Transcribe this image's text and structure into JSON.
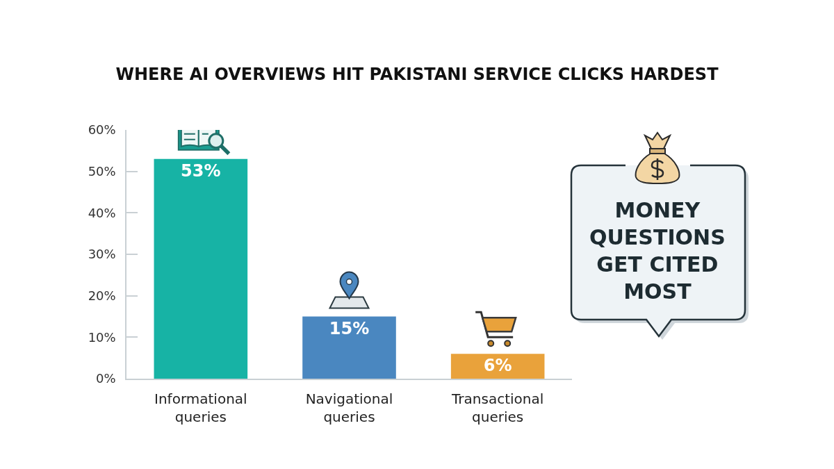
{
  "chart_data": {
    "type": "bar",
    "title": "WHERE AI OVERVIEWS HIT PAKISTANI SERVICE CLICKS HARDEST",
    "categories": [
      "Informational queries",
      "Navigational queries",
      "Transactional queries"
    ],
    "values": [
      53,
      15,
      6
    ],
    "colors": [
      "#17b3a5",
      "#4a87c0",
      "#e9a23b"
    ],
    "value_labels": [
      "53%",
      "15%",
      "6%"
    ],
    "ylim": [
      0,
      60
    ],
    "yticks": [
      {
        "value": 0,
        "label": "0%"
      },
      {
        "value": 10,
        "label": "10%"
      },
      {
        "value": 20,
        "label": "20%"
      },
      {
        "value": 30,
        "label": "30%"
      },
      {
        "value": 40,
        "label": "40%"
      },
      {
        "value": 50,
        "label": "50%"
      },
      {
        "value": 60,
        "label": "60%"
      }
    ],
    "annotations": [
      "MONEY QUESTIONS GET CITED MOST"
    ]
  }
}
